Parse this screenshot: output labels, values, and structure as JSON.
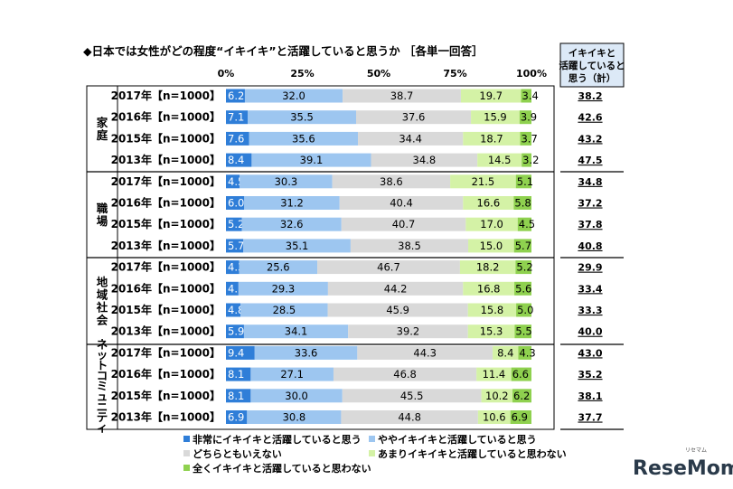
{
  "chart_data": {
    "type": "bar",
    "orientation": "horizontal",
    "stacked": "percent",
    "title": "◆日本では女性がどの程度“イキイキ”と活躍していると思うか ［各単一回答］",
    "xlim": [
      0,
      100
    ],
    "x_ticks": [
      "0%",
      "25%",
      "50%",
      "75%",
      "100%"
    ],
    "total_header": [
      "イキイキと",
      "活躍していると",
      "思う（計）"
    ],
    "series_names": [
      "非常にイキイキと活躍していると思う",
      "ややイキイキと活躍していると思う",
      "どちらともいえない",
      "あまりイキイキと活躍していると思わない",
      "全くイキイキと活躍していると思わない"
    ],
    "colors": [
      "#2f7ed8",
      "#9dc6f0",
      "#d9d9d9",
      "#d4f2a6",
      "#8fd14f"
    ],
    "groups": [
      {
        "name": "家庭",
        "rows": [
          {
            "label": "2017年【n=1000】",
            "values": [
              6.2,
              32.0,
              38.7,
              19.7,
              3.4
            ],
            "total": "38.2"
          },
          {
            "label": "2016年【n=1000】",
            "values": [
              7.1,
              35.5,
              37.6,
              15.9,
              3.9
            ],
            "total": "42.6"
          },
          {
            "label": "2015年【n=1000】",
            "values": [
              7.6,
              35.6,
              34.4,
              18.7,
              3.7
            ],
            "total": "43.2"
          },
          {
            "label": "2013年【n=1000】",
            "values": [
              8.4,
              39.1,
              34.8,
              14.5,
              3.2
            ],
            "total": "47.5"
          }
        ]
      },
      {
        "name": "職場",
        "rows": [
          {
            "label": "2017年【n=1000】",
            "values": [
              4.5,
              30.3,
              38.6,
              21.5,
              5.1
            ],
            "total": "34.8"
          },
          {
            "label": "2016年【n=1000】",
            "values": [
              6.0,
              31.2,
              40.4,
              16.6,
              5.8
            ],
            "total": "37.2"
          },
          {
            "label": "2015年【n=1000】",
            "values": [
              5.2,
              32.6,
              40.7,
              17.0,
              4.5
            ],
            "total": "37.8"
          },
          {
            "label": "2013年【n=1000】",
            "values": [
              5.7,
              35.1,
              38.5,
              15.0,
              5.7
            ],
            "total": "40.8"
          }
        ]
      },
      {
        "name": "地域社会",
        "rows": [
          {
            "label": "2017年【n=1000】",
            "values": [
              4.3,
              25.6,
              46.7,
              18.2,
              5.2
            ],
            "total": "29.9"
          },
          {
            "label": "2016年【n=1000】",
            "values": [
              4.1,
              29.3,
              44.2,
              16.8,
              5.6
            ],
            "total": "33.4"
          },
          {
            "label": "2015年【n=1000】",
            "values": [
              4.8,
              28.5,
              45.9,
              15.8,
              5.0
            ],
            "total": "33.3"
          },
          {
            "label": "2013年【n=1000】",
            "values": [
              5.9,
              34.1,
              39.2,
              15.3,
              5.5
            ],
            "total": "40.0"
          }
        ]
      },
      {
        "name": "ネットコミュニティ",
        "rows": [
          {
            "label": "2017年【n=1000】",
            "values": [
              9.4,
              33.6,
              44.3,
              8.4,
              4.3
            ],
            "total": "43.0"
          },
          {
            "label": "2016年【n=1000】",
            "values": [
              8.1,
              27.1,
              46.8,
              11.4,
              6.6
            ],
            "total": "35.2"
          },
          {
            "label": "2015年【n=1000】",
            "values": [
              8.1,
              30.0,
              45.5,
              10.2,
              6.2
            ],
            "total": "38.1"
          },
          {
            "label": "2013年【n=1000】",
            "values": [
              6.9,
              30.8,
              44.8,
              10.6,
              6.9
            ],
            "total": "37.7"
          }
        ]
      }
    ]
  },
  "watermark": {
    "text": "ReseMom",
    "small": "リセマム"
  }
}
